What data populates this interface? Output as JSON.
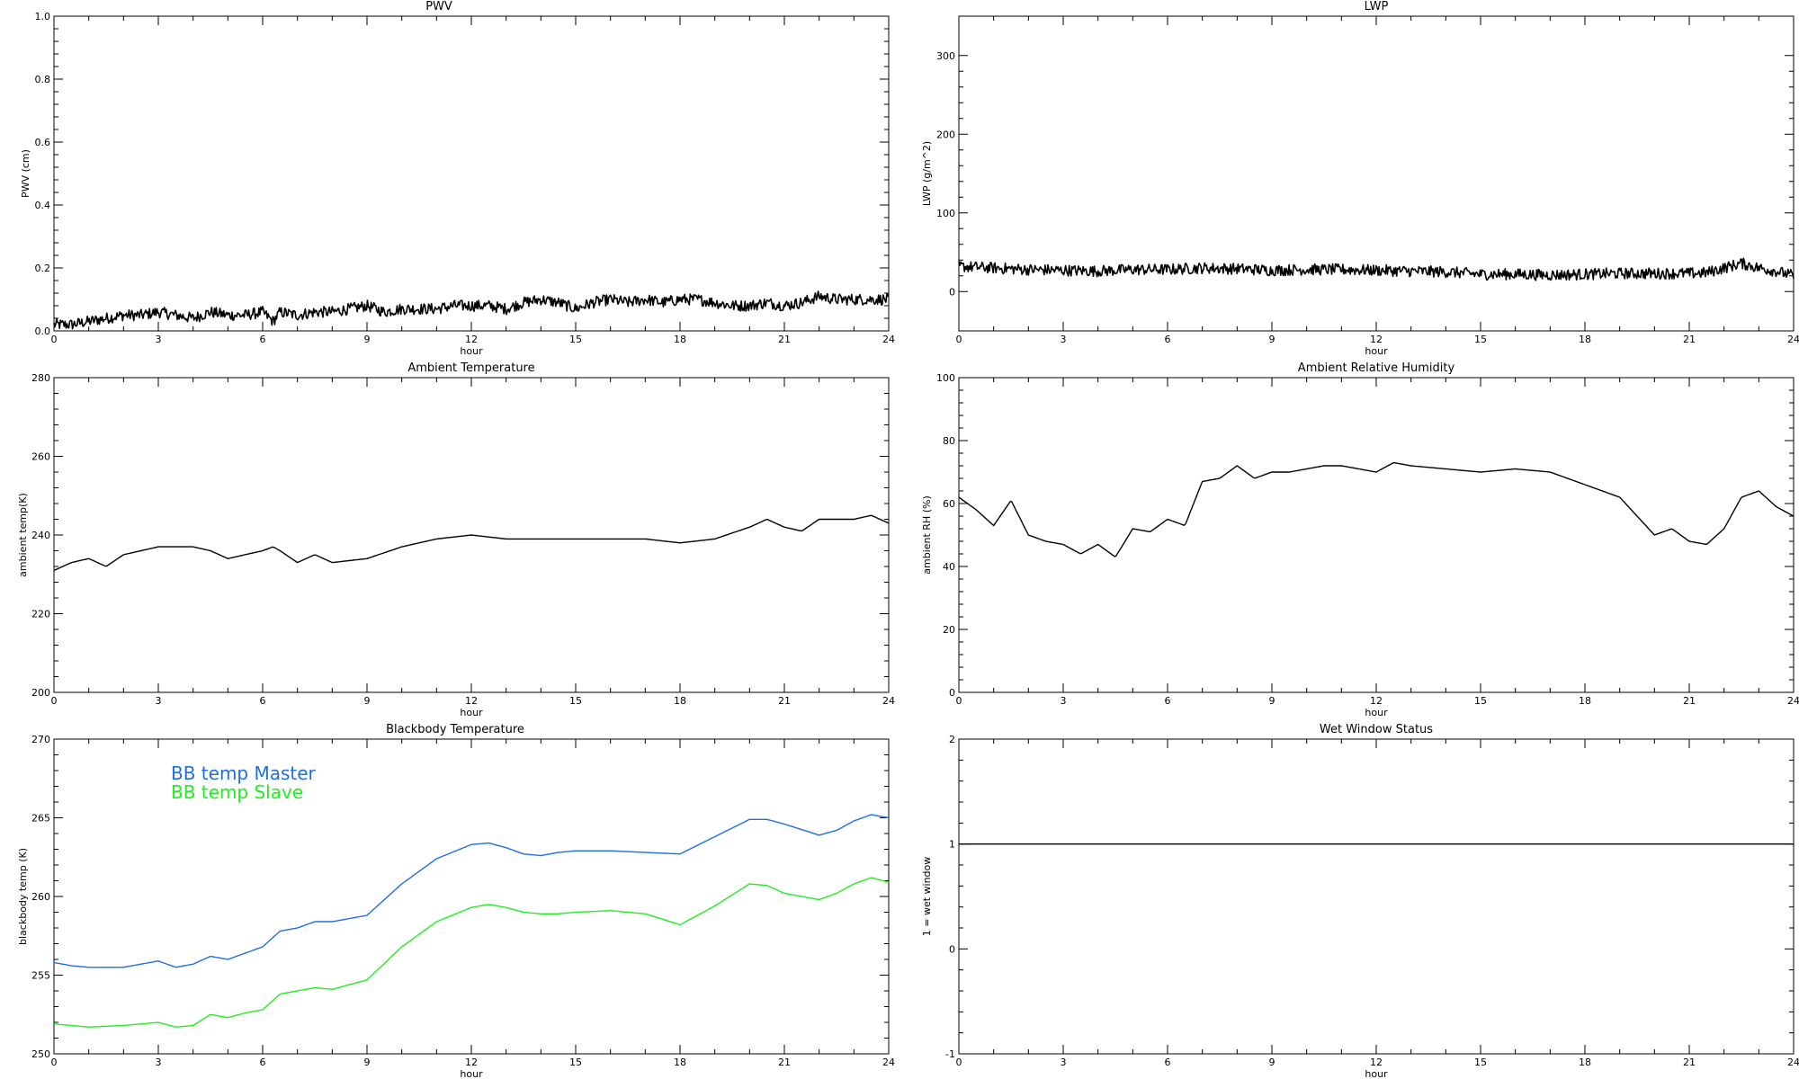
{
  "chart_data": [
    {
      "id": "pwv",
      "type": "line",
      "title": "PWV",
      "xlabel": "hour",
      "ylabel": "PWV (cm)",
      "xlim": [
        0,
        24
      ],
      "ylim": [
        0.0,
        1.0
      ],
      "xticks": [
        "0",
        "3",
        "6",
        "9",
        "12",
        "15",
        "18",
        "21",
        "24"
      ],
      "yticks": [
        "0.0",
        "0.2",
        "0.4",
        "0.6",
        "0.8",
        "1.0"
      ],
      "grid": false,
      "noisy": true,
      "series": [
        {
          "color": "#000000",
          "x": [
            0,
            0.5,
            1,
            1.5,
            2,
            2.5,
            3,
            3.5,
            4,
            4.5,
            5,
            5.5,
            6,
            6.3,
            6.5,
            7,
            7.5,
            8,
            8.5,
            9,
            9.5,
            10,
            10.5,
            11,
            11.5,
            12,
            12.5,
            13,
            13.5,
            14,
            14.5,
            15,
            15.5,
            16,
            16.5,
            17,
            17.5,
            18,
            18.5,
            19,
            19.5,
            20,
            20.5,
            21,
            21.5,
            22,
            22.5,
            23,
            23.5,
            24
          ],
          "y": [
            0.02,
            0.02,
            0.03,
            0.04,
            0.05,
            0.05,
            0.06,
            0.05,
            0.04,
            0.06,
            0.05,
            0.05,
            0.06,
            0.03,
            0.06,
            0.05,
            0.06,
            0.06,
            0.07,
            0.08,
            0.06,
            0.07,
            0.07,
            0.07,
            0.08,
            0.08,
            0.08,
            0.07,
            0.09,
            0.1,
            0.09,
            0.07,
            0.09,
            0.1,
            0.09,
            0.1,
            0.09,
            0.1,
            0.1,
            0.09,
            0.08,
            0.08,
            0.09,
            0.08,
            0.09,
            0.11,
            0.1,
            0.1,
            0.1,
            0.1
          ]
        }
      ]
    },
    {
      "id": "lwp",
      "type": "line",
      "title": "LWP",
      "xlabel": "hour",
      "ylabel": "LWP (g/m^2)",
      "xlim": [
        0,
        24
      ],
      "ylim": [
        -50,
        350
      ],
      "xticks": [
        "0",
        "3",
        "6",
        "9",
        "12",
        "15",
        "18",
        "21",
        "24"
      ],
      "yticks": [
        "0",
        "100",
        "200",
        "300"
      ],
      "ytick_values": [
        0,
        100,
        200,
        300
      ],
      "grid": false,
      "noisy": true,
      "series": [
        {
          "color": "#000000",
          "x": [
            0,
            1,
            2,
            3,
            4,
            5,
            6,
            7,
            8,
            9,
            10,
            11,
            12,
            13,
            14,
            15,
            16,
            17,
            18,
            19,
            20,
            21,
            21.5,
            22,
            22.5,
            23,
            23.5,
            24
          ],
          "y": [
            32,
            30,
            28,
            27,
            26,
            28,
            28,
            30,
            29,
            27,
            28,
            28,
            27,
            26,
            25,
            22,
            22,
            21,
            22,
            23,
            23,
            23,
            24,
            30,
            36,
            30,
            26,
            20
          ]
        }
      ]
    },
    {
      "id": "ambient-temperature",
      "type": "line",
      "title": "Ambient Temperature",
      "xlabel": "hour",
      "ylabel": "ambient temp(K)",
      "xlim": [
        0,
        24
      ],
      "ylim": [
        200,
        280
      ],
      "xticks": [
        "0",
        "3",
        "6",
        "9",
        "12",
        "15",
        "18",
        "21",
        "24"
      ],
      "yticks": [
        "200",
        "220",
        "240",
        "260",
        "280"
      ],
      "ytick_values": [
        200,
        220,
        240,
        260,
        280
      ],
      "grid": false,
      "noisy": false,
      "series": [
        {
          "color": "#000000",
          "x": [
            0,
            0.5,
            1,
            1.5,
            2,
            2.5,
            3,
            3.5,
            4,
            4.5,
            5,
            5.5,
            6,
            6.3,
            6.5,
            7,
            7.5,
            8,
            9,
            10,
            11,
            12,
            13,
            14,
            15,
            16,
            17,
            18,
            19,
            20,
            20.5,
            21,
            21.5,
            22,
            23,
            23.5,
            24
          ],
          "y": [
            231,
            233,
            234,
            232,
            235,
            236,
            237,
            237,
            237,
            236,
            234,
            235,
            236,
            237,
            236,
            233,
            235,
            233,
            234,
            237,
            239,
            240,
            239,
            239,
            239,
            239,
            239,
            238,
            239,
            242,
            244,
            242,
            241,
            244,
            244,
            245,
            243
          ]
        }
      ]
    },
    {
      "id": "ambient-rh",
      "type": "line",
      "title": "Ambient Relative Humidity",
      "xlabel": "hour",
      "ylabel": "ambient RH (%)",
      "xlim": [
        0,
        24
      ],
      "ylim": [
        0,
        100
      ],
      "xticks": [
        "0",
        "3",
        "6",
        "9",
        "12",
        "15",
        "18",
        "21",
        "24"
      ],
      "yticks": [
        "0",
        "20",
        "40",
        "60",
        "80",
        "100"
      ],
      "ytick_values": [
        0,
        20,
        40,
        60,
        80,
        100
      ],
      "grid": false,
      "noisy": false,
      "series": [
        {
          "color": "#000000",
          "x": [
            0,
            0.5,
            1,
            1.5,
            2,
            2.5,
            3,
            3.5,
            4,
            4.5,
            5,
            5.5,
            6,
            6.5,
            7,
            7.5,
            8,
            8.5,
            9,
            9.5,
            10,
            10.5,
            11,
            11.5,
            12,
            12.5,
            13,
            14,
            15,
            16,
            17,
            18,
            19,
            20,
            20.5,
            21,
            21.5,
            22,
            22.5,
            23,
            23.5,
            24
          ],
          "y": [
            62,
            58,
            53,
            61,
            50,
            48,
            47,
            44,
            47,
            43,
            52,
            51,
            55,
            53,
            67,
            68,
            72,
            68,
            70,
            70,
            71,
            72,
            72,
            71,
            70,
            73,
            72,
            71,
            70,
            71,
            70,
            66,
            62,
            50,
            52,
            48,
            47,
            52,
            62,
            64,
            59,
            56
          ]
        }
      ]
    },
    {
      "id": "blackbody-temperature",
      "type": "line",
      "title": "Blackbody Temperature",
      "xlabel": "hour",
      "ylabel": "blackbody temp (K)",
      "xlim": [
        0,
        24
      ],
      "ylim": [
        250,
        270
      ],
      "xticks": [
        "0",
        "3",
        "6",
        "9",
        "12",
        "15",
        "18",
        "21",
        "24"
      ],
      "yticks": [
        "250",
        "255",
        "260",
        "265",
        "270"
      ],
      "ytick_values": [
        250,
        255,
        260,
        265,
        270
      ],
      "grid": false,
      "noisy": false,
      "series": [
        {
          "name": "BB temp Master",
          "color": "#1f6fe0",
          "x": [
            0,
            0.5,
            1,
            2,
            3,
            3.5,
            4,
            4.5,
            5,
            5.5,
            6,
            6.5,
            7,
            7.5,
            8,
            9,
            10,
            11,
            12,
            12.5,
            13,
            13.5,
            14,
            14.5,
            15,
            16,
            17,
            18,
            19,
            20,
            20.5,
            21,
            22,
            22.5,
            23,
            23.5,
            24
          ],
          "y": [
            255.8,
            255.6,
            255.5,
            255.5,
            255.9,
            255.5,
            255.7,
            256.2,
            256.0,
            256.4,
            256.8,
            257.8,
            258.0,
            258.4,
            258.4,
            258.8,
            260.8,
            262.4,
            263.3,
            263.4,
            263.1,
            262.7,
            262.6,
            262.8,
            262.9,
            262.9,
            262.8,
            262.7,
            263.8,
            264.9,
            264.9,
            264.6,
            263.9,
            264.2,
            264.8,
            265.2,
            265.0
          ]
        },
        {
          "name": "BB temp Slave",
          "color": "#22ee22",
          "x": [
            0,
            0.5,
            1,
            2,
            3,
            3.5,
            4,
            4.5,
            5,
            5.5,
            6,
            6.5,
            7,
            7.5,
            8,
            9,
            10,
            11,
            12,
            12.5,
            13,
            13.5,
            14,
            14.5,
            15,
            16,
            17,
            18,
            19,
            20,
            20.5,
            21,
            22,
            22.5,
            23,
            23.5,
            24
          ],
          "y": [
            251.9,
            251.8,
            251.7,
            251.8,
            252.0,
            251.7,
            251.8,
            252.5,
            252.3,
            252.6,
            252.8,
            253.8,
            254.0,
            254.2,
            254.1,
            254.7,
            256.8,
            258.4,
            259.3,
            259.5,
            259.3,
            259.0,
            258.9,
            258.9,
            259.0,
            259.1,
            258.9,
            258.2,
            259.4,
            260.8,
            260.7,
            260.2,
            259.8,
            260.2,
            260.8,
            261.2,
            260.9
          ]
        }
      ],
      "legend_position": "top-left"
    },
    {
      "id": "wet-window",
      "type": "line",
      "title": "Wet Window Status",
      "xlabel": "hour",
      "ylabel": "1 = wet window",
      "xlim": [
        0,
        24
      ],
      "ylim": [
        -1,
        2
      ],
      "xticks": [
        "0",
        "3",
        "6",
        "9",
        "12",
        "15",
        "18",
        "21",
        "24"
      ],
      "yticks": [
        "-1",
        "0",
        "1",
        "2"
      ],
      "ytick_values": [
        -1,
        0,
        1,
        2
      ],
      "grid": false,
      "noisy": false,
      "series": [
        {
          "color": "#000000",
          "x": [
            0,
            24
          ],
          "y": [
            1,
            1
          ]
        }
      ]
    }
  ]
}
